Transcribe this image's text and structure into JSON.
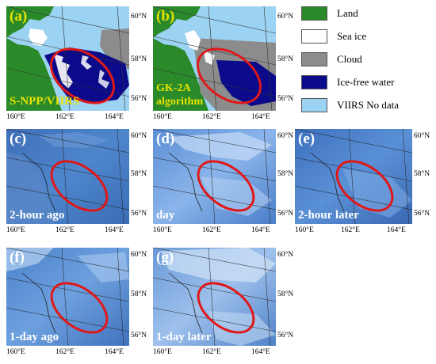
{
  "legend": [
    {
      "label": "Land",
      "color": "#2a8a2a"
    },
    {
      "label": "Sea ice",
      "color": "#ffffff"
    },
    {
      "label": "Cloud",
      "color": "#8c8c8c"
    },
    {
      "label": "Ice-free water",
      "color": "#0a0a8a"
    },
    {
      "label": "VIIRS No data",
      "color": "#9cd2f2"
    }
  ],
  "panels": [
    {
      "id": "a",
      "label": "(a)",
      "caption": "S-NPP/VIIRS",
      "type": "classified"
    },
    {
      "id": "b",
      "label": "(b)",
      "caption_lines": [
        "GK-2A",
        "algorithm"
      ],
      "type": "classified"
    },
    {
      "id": "c",
      "label": "(c)",
      "caption": "2-hour ago",
      "type": "rgb"
    },
    {
      "id": "d",
      "label": "(d)",
      "caption": "day",
      "type": "rgb"
    },
    {
      "id": "e",
      "label": "(e)",
      "caption": "2-hour later",
      "type": "rgb"
    },
    {
      "id": "f",
      "label": "(f)",
      "caption": "1-day ago",
      "type": "rgb"
    },
    {
      "id": "g",
      "label": "(g)",
      "caption": "1-day later",
      "type": "rgb"
    }
  ],
  "axes": {
    "lon_ticks": [
      "160°E",
      "162°E",
      "164°E"
    ],
    "lat_ticks": [
      "60°N",
      "58°N",
      "56°N"
    ]
  },
  "highlight_color": "#e01818"
}
